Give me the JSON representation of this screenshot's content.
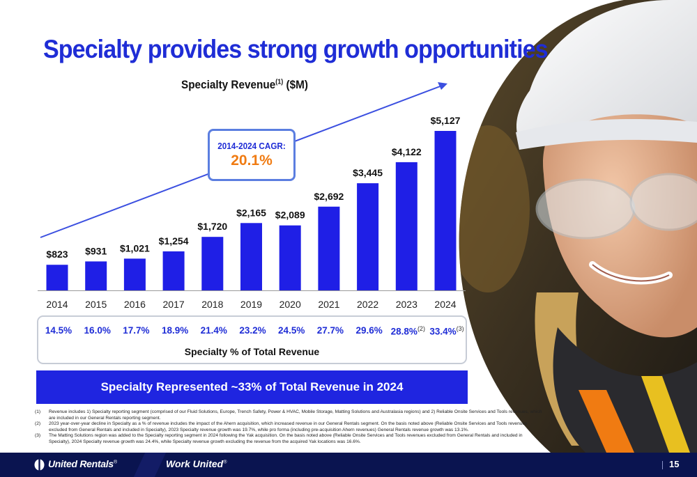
{
  "slide": {
    "title": "Specialty provides strong growth opportunities",
    "page_number": "15"
  },
  "chart_data": {
    "type": "bar",
    "title": "Specialty Revenue",
    "title_superscript": "(1)",
    "title_unit": "($M)",
    "categories": [
      "2014",
      "2015",
      "2016",
      "2017",
      "2018",
      "2019",
      "2020",
      "2021",
      "2022",
      "2023",
      "2024"
    ],
    "values": [
      823,
      931,
      1021,
      1254,
      1720,
      2165,
      2089,
      2692,
      3445,
      4122,
      5127
    ],
    "value_labels": [
      "$823",
      "$931",
      "$1,021",
      "$1,254",
      "$1,720",
      "$2,165",
      "$2,089",
      "$2,692",
      "$3,445",
      "$4,122",
      "$5,127"
    ],
    "ylim": [
      0,
      5127
    ],
    "grid": false,
    "bar_color": "#1f1fe6",
    "annotation": {
      "label": "2014-2024 CAGR:",
      "value": "20.1%"
    },
    "secondary_row": {
      "caption": "Specialty % of Total Revenue",
      "values": [
        "14.5%",
        "16.0%",
        "17.7%",
        "18.9%",
        "21.4%",
        "23.2%",
        "24.5%",
        "27.7%",
        "29.6%",
        "28.8%",
        "33.4%"
      ],
      "superscripts": [
        "",
        "",
        "",
        "",
        "",
        "",
        "",
        "",
        "",
        "(2)",
        "(3)"
      ]
    }
  },
  "banner": "Specialty Represented ~33% of Total Revenue in 2024",
  "footnotes": [
    {
      "num": "(1)",
      "text": "Revenue includes 1) Specialty reporting segment (comprised of our Fluid Solutions, Europe, Trench Safety, Power & HVAC, Mobile Storage, Matting Solutions and Australasia regions) and 2) Reliable Onsite Services and Tools revenues, which are included in our General Rentals reporting segment."
    },
    {
      "num": "(2)",
      "text": "2023 year-over-year decline in Specialty as a % of revenue includes the impact of the Ahern acquisition, which increased revenue in our General Rentals segment. On the basis noted above (Reliable Onsite Services and Tools revenues excluded from General Rentals and included in Specialty), 2023 Specialty revenue growth was 19.7%, while pro forma (including pre-acquisition Ahern revenues) General Rentals revenue growth was 13.1%."
    },
    {
      "num": "(3)",
      "text": "The Matting Solutions region was added to the Specialty reporting segment in 2024 following the Yak acquisition.  On the basis noted above (Reliable Onsite Services and Tools revenues excluded from General Rentals and included in Specialty), 2024 Specialty revenue growth was 24.4%, while Specialty revenue growth excluding the revenue from the acquired Yak locations was 16.6%."
    }
  ],
  "footer": {
    "logo": "United Rentals",
    "logo_mark": "®",
    "tagline": "Work United",
    "tagline_mark": "®"
  },
  "colors": {
    "title_blue": "#1f2dd6",
    "bar_blue": "#1f1fe6",
    "cagr_orange": "#f07b12",
    "footer_navy": "#0a1450"
  }
}
